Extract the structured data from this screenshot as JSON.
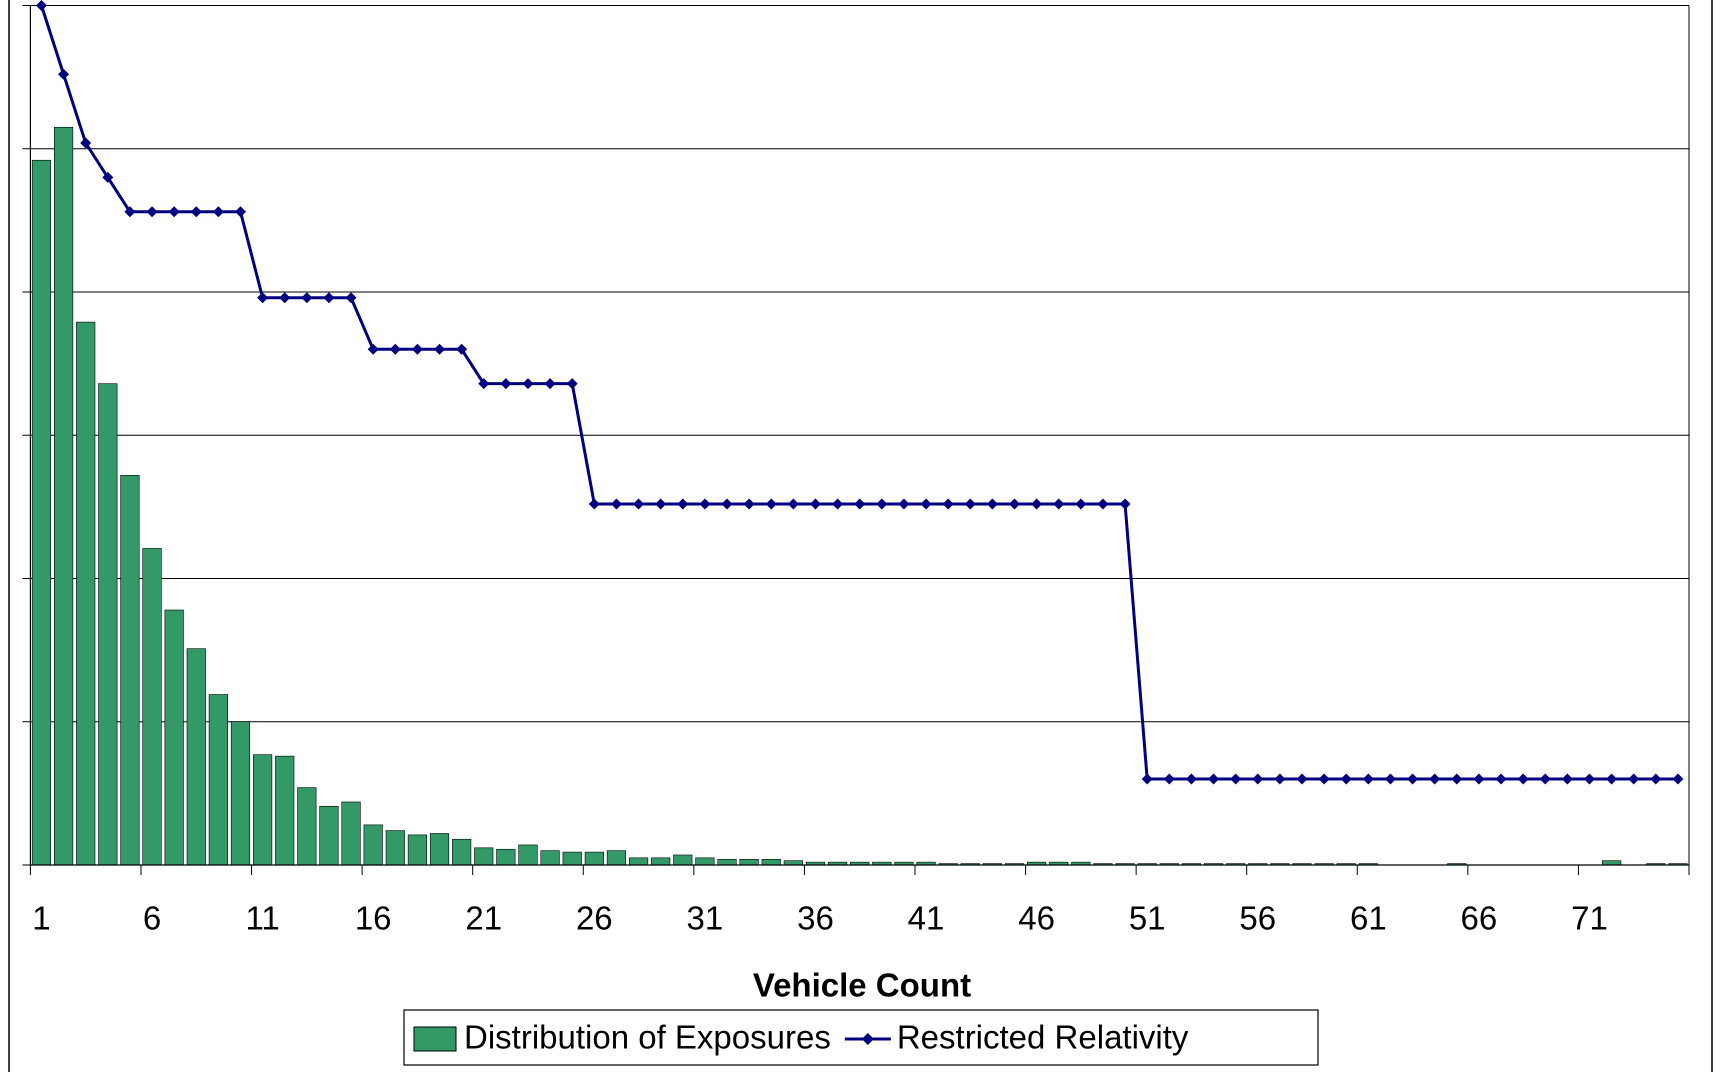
{
  "chart_data": {
    "type": "bar-line",
    "x_label": "Vehicle Count",
    "categories": [
      "1",
      null,
      null,
      null,
      null,
      "6",
      null,
      null,
      null,
      null,
      "11",
      null,
      null,
      null,
      null,
      "16",
      null,
      null,
      null,
      null,
      "21",
      null,
      null,
      null,
      null,
      "26",
      null,
      null,
      null,
      null,
      "31",
      null,
      null,
      null,
      null,
      "36",
      null,
      null,
      null,
      null,
      "41",
      null,
      null,
      null,
      null,
      "46",
      null,
      null,
      null,
      null,
      "51",
      null,
      null,
      null,
      null,
      "56",
      null,
      null,
      null,
      null,
      "61",
      null,
      null,
      null,
      null,
      "66",
      null,
      null,
      null,
      null,
      "71",
      null,
      null,
      null,
      null
    ],
    "series": [
      {
        "name": "Distribution of Exposures",
        "type": "bar",
        "color": "#339966",
        "values": [
          4.92,
          5.15,
          3.79,
          3.36,
          2.72,
          2.21,
          1.78,
          1.51,
          1.19,
          1.0,
          0.77,
          0.76,
          0.54,
          0.41,
          0.44,
          0.28,
          0.24,
          0.21,
          0.22,
          0.18,
          0.12,
          0.11,
          0.14,
          0.1,
          0.09,
          0.09,
          0.1,
          0.05,
          0.05,
          0.07,
          0.05,
          0.04,
          0.04,
          0.04,
          0.03,
          0.02,
          0.02,
          0.02,
          0.02,
          0.02,
          0.02,
          0.01,
          0.01,
          0.01,
          0.01,
          0.02,
          0.02,
          0.02,
          0.01,
          0.01,
          0.01,
          0.01,
          0.01,
          0.01,
          0.01,
          0.01,
          0.01,
          0.01,
          0.01,
          0.01,
          0.01,
          0,
          0,
          0,
          0.01,
          0,
          0,
          0,
          0,
          0,
          0,
          0.03,
          0,
          0.01,
          0.01
        ]
      },
      {
        "name": "Restricted Relativity",
        "type": "line",
        "color": "#000080",
        "values": [
          6.0,
          5.52,
          5.04,
          4.8,
          4.56,
          4.56,
          4.56,
          4.56,
          4.56,
          4.56,
          3.96,
          3.96,
          3.96,
          3.96,
          3.96,
          3.6,
          3.6,
          3.6,
          3.6,
          3.6,
          3.36,
          3.36,
          3.36,
          3.36,
          3.36,
          2.52,
          2.52,
          2.52,
          2.52,
          2.52,
          2.52,
          2.52,
          2.52,
          2.52,
          2.52,
          2.52,
          2.52,
          2.52,
          2.52,
          2.52,
          2.52,
          2.52,
          2.52,
          2.52,
          2.52,
          2.52,
          2.52,
          2.52,
          2.52,
          2.52,
          0.6,
          0.6,
          0.6,
          0.6,
          0.6,
          0.6,
          0.6,
          0.6,
          0.6,
          0.6,
          0.6,
          0.6,
          0.6,
          0.6,
          0.6,
          0.6,
          0.6,
          0.6,
          0.6,
          0.6,
          0.6,
          0.6,
          0.6,
          0.6,
          0.6
        ]
      }
    ],
    "ylim": [
      0,
      6
    ],
    "yticks": [
      0,
      1,
      2,
      3,
      4,
      5,
      6
    ],
    "grid": true
  }
}
